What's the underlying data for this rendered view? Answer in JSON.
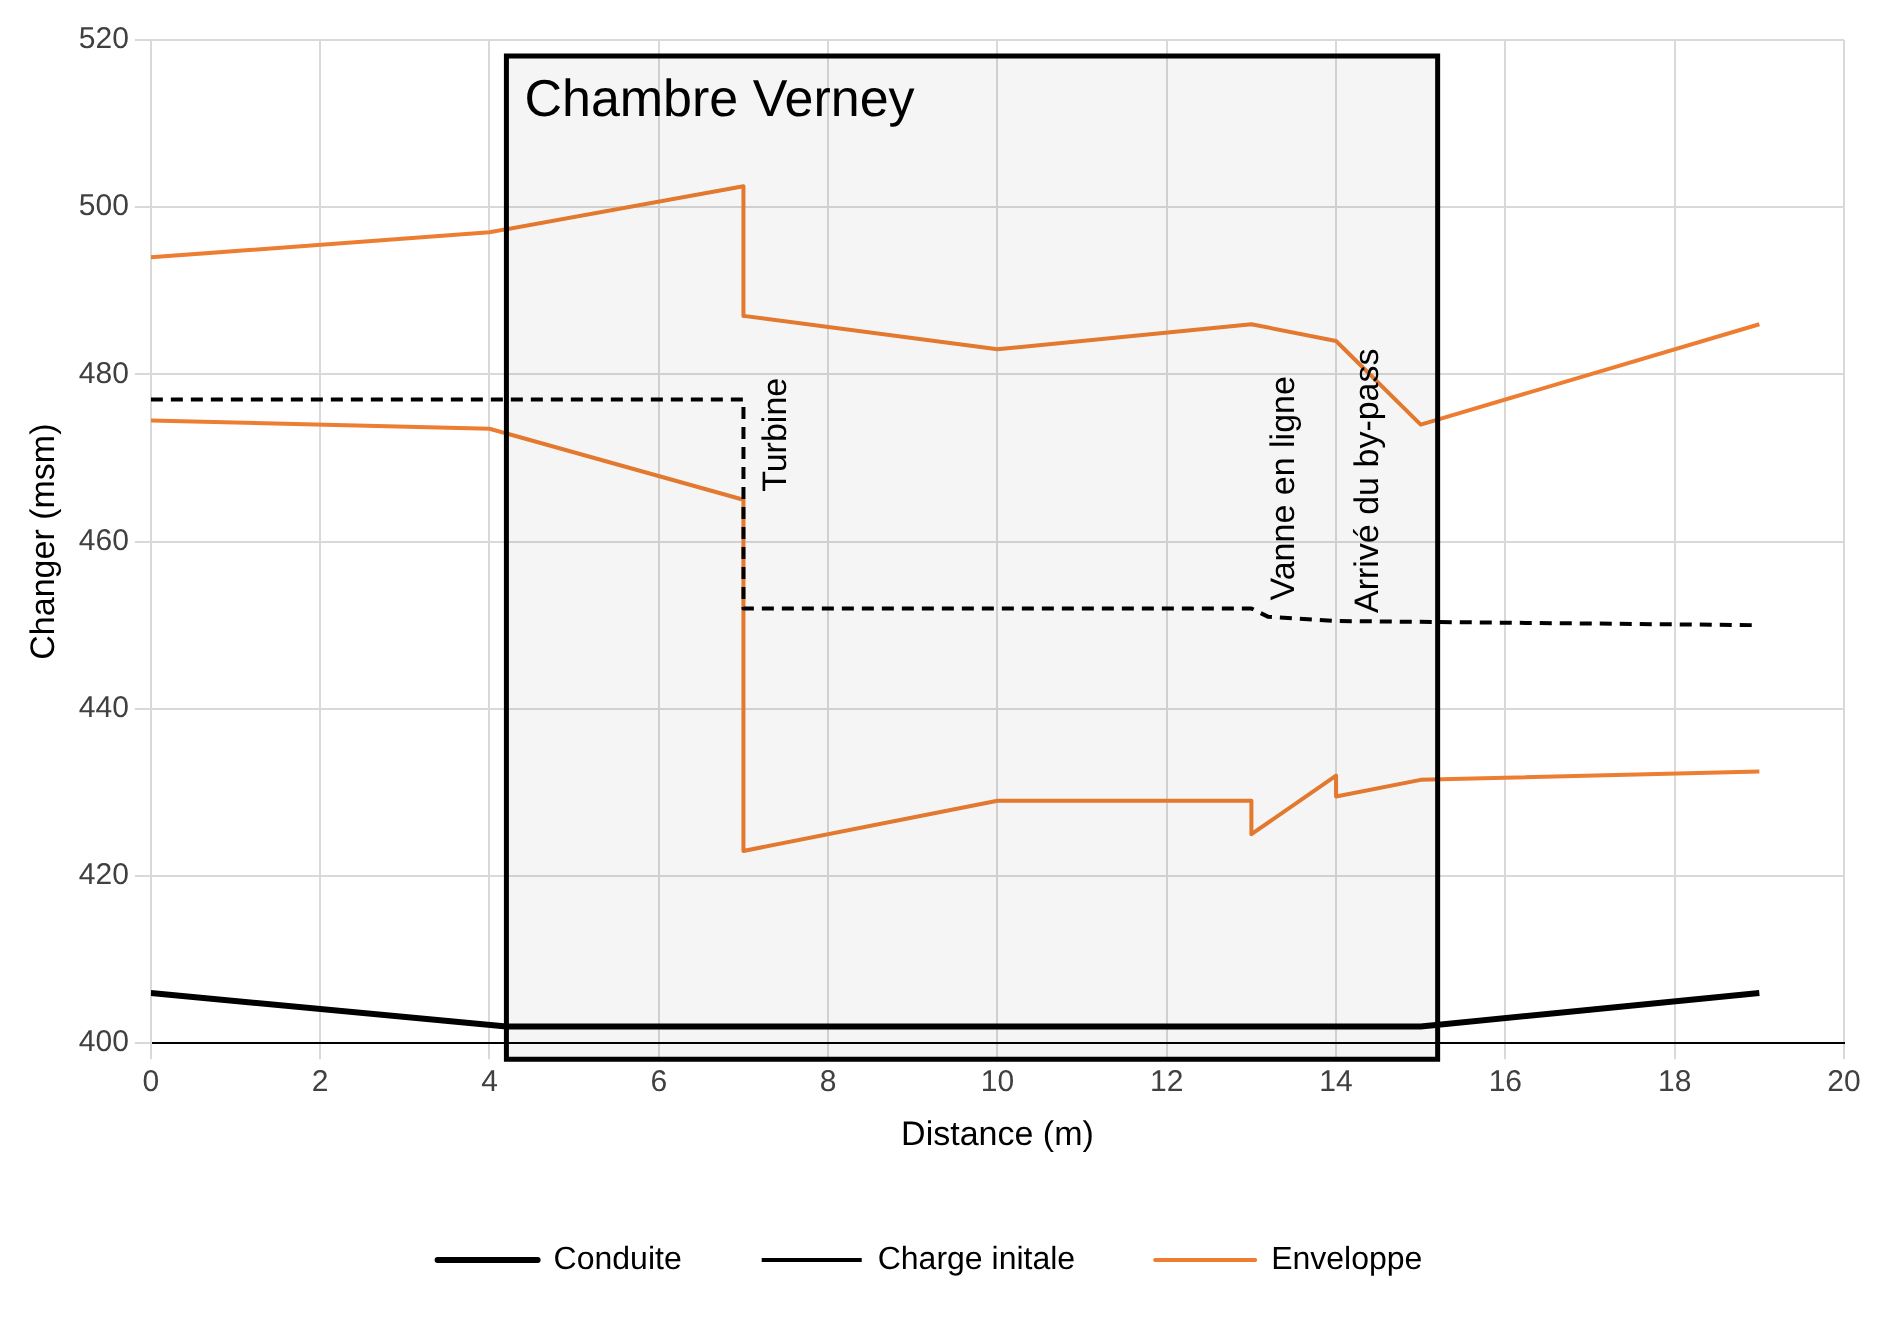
{
  "chart_data": {
    "type": "line",
    "xlabel": "Distance (m)",
    "ylabel": "Changer (msm)",
    "xlim": [
      0,
      20
    ],
    "xticks": [
      0,
      2,
      4,
      6,
      8,
      10,
      12,
      14,
      16,
      18,
      20
    ],
    "ylim": [
      400,
      520
    ],
    "yticks": [
      400,
      420,
      440,
      460,
      480,
      500,
      520
    ],
    "grid": true,
    "legend": "bottom",
    "marker": "none",
    "series": [
      {
        "name": "Conduite",
        "color": "#000000",
        "line_style": "solid",
        "x": [
          0,
          4.2,
          15,
          19
        ],
        "values": [
          406,
          402,
          402,
          406
        ]
      },
      {
        "name": "Charge initale",
        "color": "#000000",
        "line_style": "dashed",
        "x": [
          0,
          7,
          7,
          7,
          13,
          13.2,
          14,
          19
        ],
        "values": [
          477,
          477,
          465,
          452,
          452,
          451,
          450.5,
          450
        ]
      },
      {
        "name": "Enveloppe",
        "color": "#ed7d31",
        "line_style": "solid",
        "x": [
          0,
          4,
          7,
          7,
          10,
          13,
          14,
          15,
          19
        ],
        "values": [
          494,
          497,
          502.5,
          487,
          483,
          486,
          484,
          474,
          486
        ]
      },
      {
        "color": "#ed7d31",
        "line_style": "solid",
        "x": [
          0,
          4,
          7,
          7,
          10,
          13,
          13,
          14,
          14,
          15,
          19
        ],
        "values": [
          474.5,
          473.5,
          465,
          423,
          429,
          429,
          425,
          432,
          429.5,
          431.5,
          432.5
        ]
      }
    ],
    "bands": [
      {
        "axis": "x",
        "from": 4.2,
        "to": 15.2,
        "label": "Chambre Verney",
        "color": "#000000"
      }
    ],
    "annotations": [
      {
        "text": "Turbine",
        "x": 7,
        "y": 465
      },
      {
        "text": "Vanne en ligne",
        "x": 13,
        "y": 452
      },
      {
        "text": "Arrivé du by-pass",
        "x": 14,
        "y": 450.5
      }
    ]
  }
}
